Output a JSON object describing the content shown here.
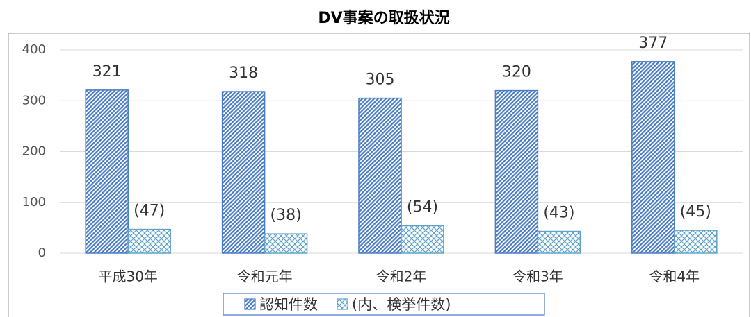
{
  "chart_data": {
    "type": "bar",
    "title": "DV事案の取扱状況",
    "categories": [
      "平成30年",
      "令和元年",
      "令和2年",
      "令和3年",
      "令和4年"
    ],
    "series": [
      {
        "name": "認知件数",
        "color": "#4a7cc4",
        "values": [
          321,
          318,
          305,
          320,
          377
        ]
      },
      {
        "name": "(内、検挙件数)",
        "color": "#5fa3c8",
        "values": [
          47,
          38,
          54,
          43,
          45
        ],
        "value_labels": [
          "(47)",
          "(38)",
          "(54)",
          "(43)",
          "(45)"
        ]
      }
    ],
    "ylim": [
      0,
      400
    ],
    "yticks": [
      0,
      100,
      200,
      300,
      400
    ],
    "grid": true
  }
}
